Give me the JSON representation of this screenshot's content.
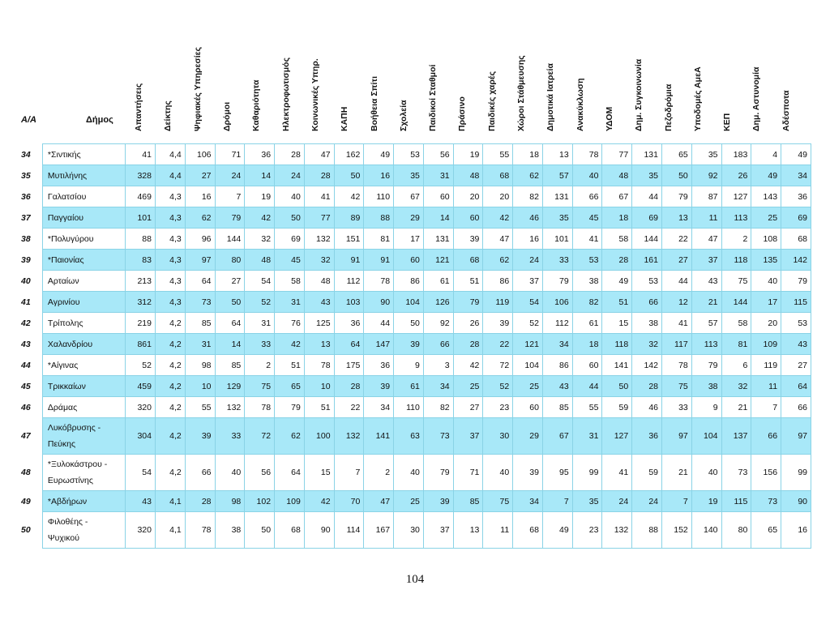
{
  "header": {
    "aa": "Α/Α",
    "dimos": "Δήμος",
    "columns": [
      "Απαντήσεις",
      "Δείκτης",
      "Ψηφιακές Υπηρεσίες",
      "Δρόμοι",
      "Καθαριότητα",
      "Ηλεκτροφωτισμός",
      "Κοινωνικές Υπηρ.",
      "ΚΑΠΗ",
      "Βοήθεια Σπίτι",
      "Σχολεία",
      "Παιδικοί Σταθμοί",
      "Πράσινο",
      "Παιδικές χαρές",
      "Χώροι Στάθμευσης",
      "Δημοτικά Ιατρεία",
      "Ανακύκλωση",
      "ΥΔΟΜ",
      "Δημ. Συγκοινωνία",
      "Πεζοδρόμια",
      "Υποδομές ΑμεΑ",
      "ΚΕΠ",
      "Δημ. Αστυνομία",
      "Αδέσποτα"
    ]
  },
  "rows": [
    {
      "n": "34",
      "name": "*Σιντικής",
      "v": [
        "41",
        "4,4",
        "106",
        "71",
        "36",
        "28",
        "47",
        "162",
        "49",
        "53",
        "56",
        "19",
        "55",
        "18",
        "13",
        "78",
        "77",
        "131",
        "65",
        "35",
        "183",
        "4",
        "49"
      ]
    },
    {
      "n": "35",
      "name": "Μυτιλήνης",
      "v": [
        "328",
        "4,4",
        "27",
        "24",
        "14",
        "24",
        "28",
        "50",
        "16",
        "35",
        "31",
        "48",
        "68",
        "62",
        "57",
        "40",
        "48",
        "35",
        "50",
        "92",
        "26",
        "49",
        "34"
      ]
    },
    {
      "n": "36",
      "name": "Γαλατσίου",
      "v": [
        "469",
        "4,3",
        "16",
        "7",
        "19",
        "40",
        "41",
        "42",
        "110",
        "67",
        "60",
        "20",
        "20",
        "82",
        "131",
        "66",
        "67",
        "44",
        "79",
        "87",
        "127",
        "143",
        "36"
      ]
    },
    {
      "n": "37",
      "name": "Παγγαίου",
      "v": [
        "101",
        "4,3",
        "62",
        "79",
        "42",
        "50",
        "77",
        "89",
        "88",
        "29",
        "14",
        "60",
        "42",
        "46",
        "35",
        "45",
        "18",
        "69",
        "13",
        "11",
        "113",
        "25",
        "69"
      ]
    },
    {
      "n": "38",
      "name": "*Πολυγύρου",
      "v": [
        "88",
        "4,3",
        "96",
        "144",
        "32",
        "69",
        "132",
        "151",
        "81",
        "17",
        "131",
        "39",
        "47",
        "16",
        "101",
        "41",
        "58",
        "144",
        "22",
        "47",
        "2",
        "108",
        "68"
      ]
    },
    {
      "n": "39",
      "name": "*Παιονίας",
      "v": [
        "83",
        "4,3",
        "97",
        "80",
        "48",
        "45",
        "32",
        "91",
        "91",
        "60",
        "121",
        "68",
        "62",
        "24",
        "33",
        "53",
        "28",
        "161",
        "27",
        "37",
        "118",
        "135",
        "142"
      ]
    },
    {
      "n": "40",
      "name": "Αρταίων",
      "v": [
        "213",
        "4,3",
        "64",
        "27",
        "54",
        "58",
        "48",
        "112",
        "78",
        "86",
        "61",
        "51",
        "86",
        "37",
        "79",
        "38",
        "49",
        "53",
        "44",
        "43",
        "75",
        "40",
        "79"
      ]
    },
    {
      "n": "41",
      "name": "Αγρινίου",
      "v": [
        "312",
        "4,3",
        "73",
        "50",
        "52",
        "31",
        "43",
        "103",
        "90",
        "104",
        "126",
        "79",
        "119",
        "54",
        "106",
        "82",
        "51",
        "66",
        "12",
        "21",
        "144",
        "17",
        "115"
      ]
    },
    {
      "n": "42",
      "name": "Τρίπολης",
      "v": [
        "219",
        "4,2",
        "85",
        "64",
        "31",
        "76",
        "125",
        "36",
        "44",
        "50",
        "92",
        "26",
        "39",
        "52",
        "112",
        "61",
        "15",
        "38",
        "41",
        "57",
        "58",
        "20",
        "53"
      ]
    },
    {
      "n": "43",
      "name": "Χαλανδρίου",
      "v": [
        "861",
        "4,2",
        "31",
        "14",
        "33",
        "42",
        "13",
        "64",
        "147",
        "39",
        "66",
        "28",
        "22",
        "121",
        "34",
        "18",
        "118",
        "32",
        "117",
        "113",
        "81",
        "109",
        "43"
      ]
    },
    {
      "n": "44",
      "name": "*Αίγινας",
      "v": [
        "52",
        "4,2",
        "98",
        "85",
        "2",
        "51",
        "78",
        "175",
        "36",
        "9",
        "3",
        "42",
        "72",
        "104",
        "86",
        "60",
        "141",
        "142",
        "78",
        "79",
        "6",
        "119",
        "27"
      ]
    },
    {
      "n": "45",
      "name": "Τρικκαίων",
      "v": [
        "459",
        "4,2",
        "10",
        "129",
        "75",
        "65",
        "10",
        "28",
        "39",
        "61",
        "34",
        "25",
        "52",
        "25",
        "43",
        "44",
        "50",
        "28",
        "75",
        "38",
        "32",
        "11",
        "64"
      ]
    },
    {
      "n": "46",
      "name": "Δράμας",
      "v": [
        "320",
        "4,2",
        "55",
        "132",
        "78",
        "79",
        "51",
        "22",
        "34",
        "110",
        "82",
        "27",
        "23",
        "60",
        "85",
        "55",
        "59",
        "46",
        "33",
        "9",
        "21",
        "7",
        "66"
      ]
    },
    {
      "n": "47",
      "name": "Λυκόβρυσης - Πεύκης",
      "v": [
        "304",
        "4,2",
        "39",
        "33",
        "72",
        "62",
        "100",
        "132",
        "141",
        "63",
        "73",
        "37",
        "30",
        "29",
        "67",
        "31",
        "127",
        "36",
        "97",
        "104",
        "137",
        "66",
        "97"
      ]
    },
    {
      "n": "48",
      "name": "*Ξυλοκάστρου - Ευρωστίνης",
      "v": [
        "54",
        "4,2",
        "66",
        "40",
        "56",
        "64",
        "15",
        "7",
        "2",
        "40",
        "79",
        "71",
        "40",
        "39",
        "95",
        "99",
        "41",
        "59",
        "21",
        "40",
        "73",
        "156",
        "99"
      ]
    },
    {
      "n": "49",
      "name": "*Αβδήρων",
      "v": [
        "43",
        "4,1",
        "28",
        "98",
        "102",
        "109",
        "42",
        "70",
        "47",
        "25",
        "39",
        "85",
        "75",
        "34",
        "7",
        "35",
        "24",
        "24",
        "7",
        "19",
        "115",
        "73",
        "90"
      ]
    },
    {
      "n": "50",
      "name": "Φιλοθέης - Ψυχικού",
      "v": [
        "320",
        "4,1",
        "78",
        "38",
        "50",
        "68",
        "90",
        "114",
        "167",
        "30",
        "37",
        "13",
        "11",
        "68",
        "49",
        "23",
        "132",
        "88",
        "152",
        "140",
        "80",
        "65",
        "16"
      ]
    }
  ],
  "page_number": "104"
}
